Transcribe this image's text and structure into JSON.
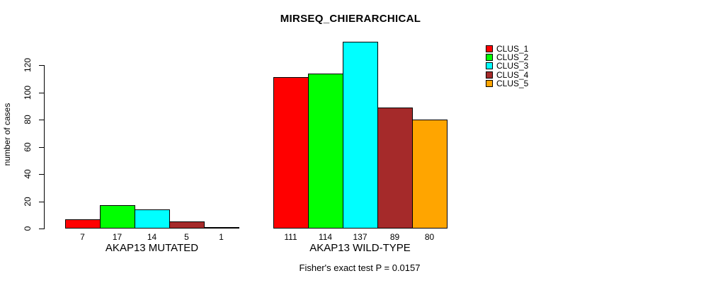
{
  "chart_data": {
    "type": "bar",
    "title": "MIRSEQ_CHIERARCHICAL",
    "ylabel": "number of cases",
    "footer": "Fisher's exact test P = 0.0157",
    "categories": [
      "AKAP13 MUTATED",
      "AKAP13 WILD-TYPE"
    ],
    "series": [
      {
        "name": "CLUS_1",
        "color": "#FF0000",
        "values": [
          7,
          111
        ]
      },
      {
        "name": "CLUS_2",
        "color": "#00FF00",
        "values": [
          17,
          114
        ]
      },
      {
        "name": "CLUS_3",
        "color": "#00FFFF",
        "values": [
          14,
          137
        ]
      },
      {
        "name": "CLUS_4",
        "color": "#A52A2A",
        "values": [
          5,
          89
        ]
      },
      {
        "name": "CLUS_5",
        "color": "#FFA500",
        "values": [
          1,
          80
        ]
      }
    ],
    "bar_value_labels": [
      [
        "7",
        "17",
        "14",
        "5",
        "1"
      ],
      [
        "111",
        "114",
        "137",
        "89",
        "80"
      ]
    ],
    "yticks": [
      0,
      20,
      40,
      60,
      80,
      100,
      120
    ],
    "ylim": [
      0,
      137
    ],
    "grid": "off",
    "legend_position": "top-right",
    "axis_color": "#000000",
    "background_color": "#FFFFFF"
  }
}
